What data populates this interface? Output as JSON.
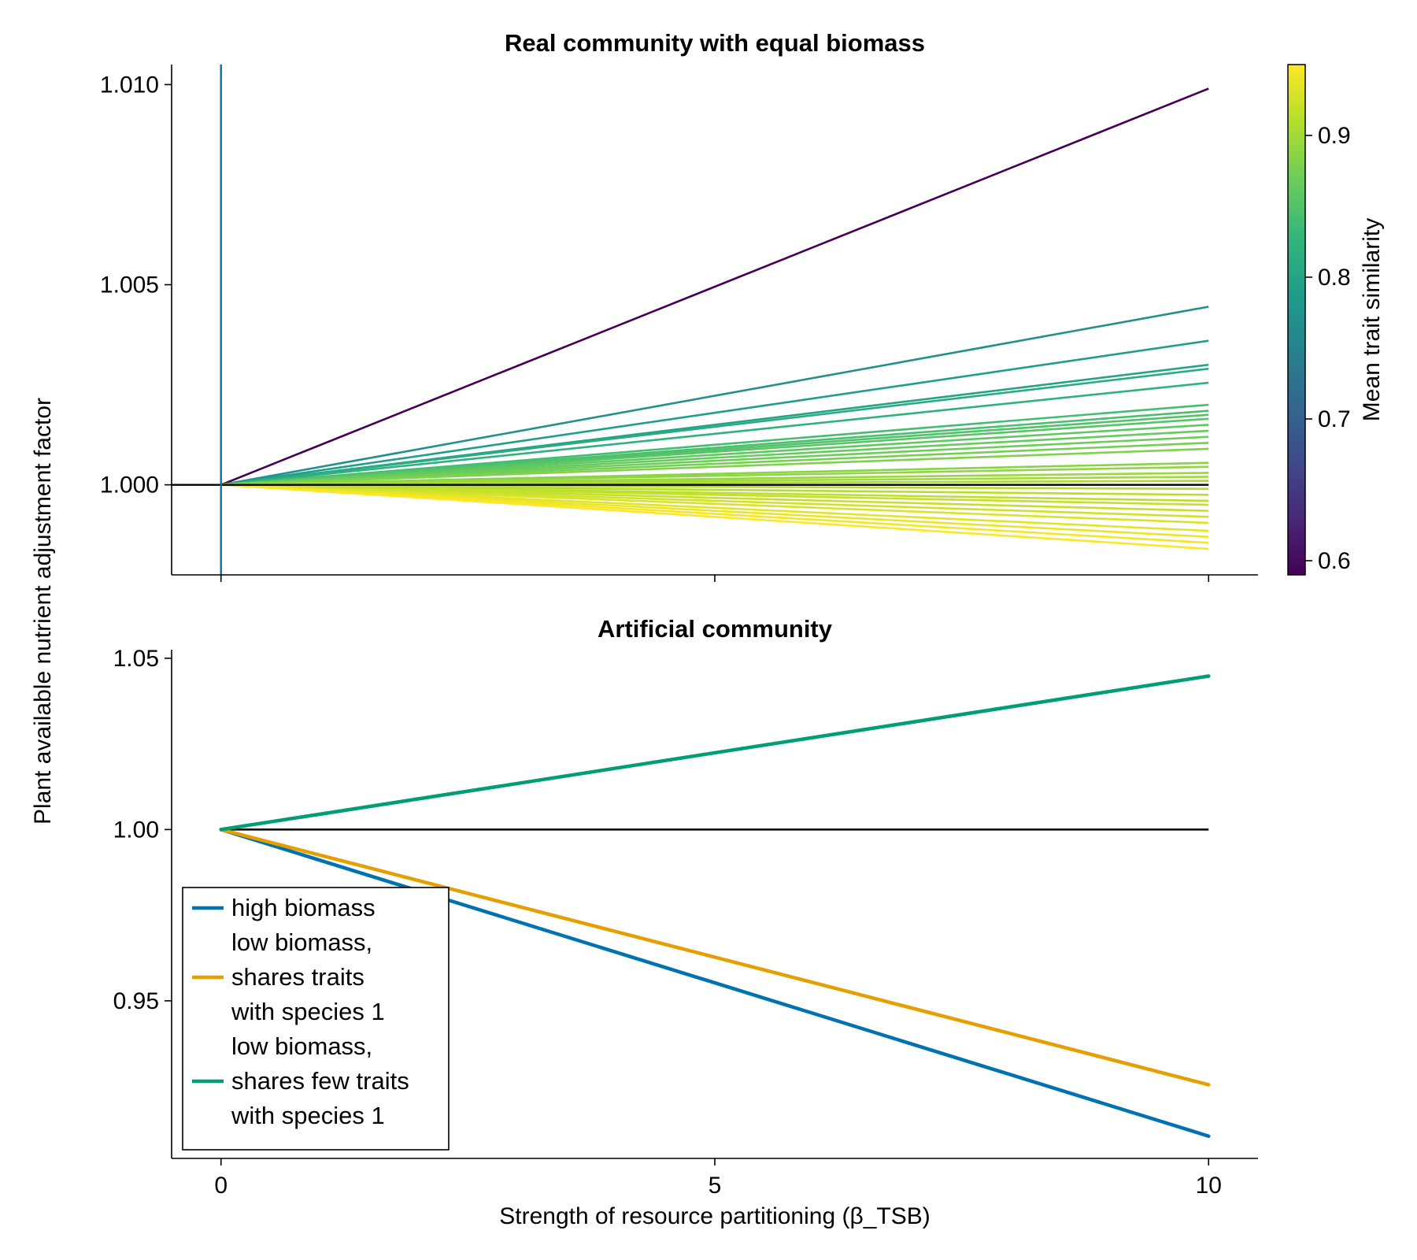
{
  "figure": {
    "ylabel": "Plant available nutrient adjustment factor",
    "xlabel": "Strength of resource partitioning (β_TSB)"
  },
  "chart_data": [
    {
      "panel": "top",
      "type": "line",
      "title": "Real community with equal biomass",
      "xlim": [
        -0.5,
        10.5
      ],
      "ylim": [
        0.99775,
        1.0105
      ],
      "x_ticks": [
        0,
        5,
        10
      ],
      "x_tick_labels_shown": false,
      "y_ticks": [
        1.0,
        1.005,
        1.01
      ],
      "y_tick_labels": [
        "1.000",
        "1.005",
        "1.010"
      ],
      "vertical_line": {
        "x": 0,
        "color": "#0072B2"
      },
      "reference_line": {
        "y": 1.0,
        "color": "#000000"
      },
      "colorbar": {
        "label": "Mean trait similarity",
        "range": [
          0.59,
          0.95
        ],
        "ticks": [
          0.6,
          0.7,
          0.8,
          0.9
        ],
        "tick_labels": [
          "0.6",
          "0.7",
          "0.8",
          "0.9"
        ],
        "colormap": "viridis"
      },
      "series": [
        {
          "x": [
            0,
            10
          ],
          "y": [
            1.0,
            1.0099
          ],
          "similarity": 0.59
        },
        {
          "x": [
            0,
            10
          ],
          "y": [
            1.0,
            1.00445
          ],
          "similarity": 0.77
        },
        {
          "x": [
            0,
            10
          ],
          "y": [
            1.0,
            1.0036
          ],
          "similarity": 0.79
        },
        {
          "x": [
            0,
            10
          ],
          "y": [
            1.0,
            1.003
          ],
          "similarity": 0.8
        },
        {
          "x": [
            0,
            10
          ],
          "y": [
            1.0,
            1.0029
          ],
          "similarity": 0.81
        },
        {
          "x": [
            0,
            10
          ],
          "y": [
            1.0,
            1.00255
          ],
          "similarity": 0.82
        },
        {
          "x": [
            0,
            10
          ],
          "y": [
            1.0,
            1.002
          ],
          "similarity": 0.84
        },
        {
          "x": [
            0,
            10
          ],
          "y": [
            1.0,
            1.00185
          ],
          "similarity": 0.845
        },
        {
          "x": [
            0,
            10
          ],
          "y": [
            1.0,
            1.00175
          ],
          "similarity": 0.85
        },
        {
          "x": [
            0,
            10
          ],
          "y": [
            1.0,
            1.00165
          ],
          "similarity": 0.855
        },
        {
          "x": [
            0,
            10
          ],
          "y": [
            1.0,
            1.0015
          ],
          "similarity": 0.86
        },
        {
          "x": [
            0,
            10
          ],
          "y": [
            1.0,
            1.00135
          ],
          "similarity": 0.865
        },
        {
          "x": [
            0,
            10
          ],
          "y": [
            1.0,
            1.0012
          ],
          "similarity": 0.87
        },
        {
          "x": [
            0,
            10
          ],
          "y": [
            1.0,
            1.00105
          ],
          "similarity": 0.875
        },
        {
          "x": [
            0,
            10
          ],
          "y": [
            1.0,
            1.0009
          ],
          "similarity": 0.88
        },
        {
          "x": [
            0,
            10
          ],
          "y": [
            1.0,
            1.00055
          ],
          "similarity": 0.885
        },
        {
          "x": [
            0,
            10
          ],
          "y": [
            1.0,
            1.00045
          ],
          "similarity": 0.89
        },
        {
          "x": [
            0,
            10
          ],
          "y": [
            1.0,
            1.0003
          ],
          "similarity": 0.895
        },
        {
          "x": [
            0,
            10
          ],
          "y": [
            1.0,
            1.0002
          ],
          "similarity": 0.9
        },
        {
          "x": [
            0,
            10
          ],
          "y": [
            1.0,
            1.0001
          ],
          "similarity": 0.905
        },
        {
          "x": [
            0,
            10
          ],
          "y": [
            1.0,
            0.9999
          ],
          "similarity": 0.91
        },
        {
          "x": [
            0,
            10
          ],
          "y": [
            1.0,
            0.99975
          ],
          "similarity": 0.912
        },
        {
          "x": [
            0,
            10
          ],
          "y": [
            1.0,
            0.9996
          ],
          "similarity": 0.915
        },
        {
          "x": [
            0,
            10
          ],
          "y": [
            1.0,
            0.9995
          ],
          "similarity": 0.918
        },
        {
          "x": [
            0,
            10
          ],
          "y": [
            1.0,
            0.99935
          ],
          "similarity": 0.92
        },
        {
          "x": [
            0,
            10
          ],
          "y": [
            1.0,
            0.9992
          ],
          "similarity": 0.925
        },
        {
          "x": [
            0,
            10
          ],
          "y": [
            1.0,
            0.99905
          ],
          "similarity": 0.93
        },
        {
          "x": [
            0,
            10
          ],
          "y": [
            1.0,
            0.99885
          ],
          "similarity": 0.935
        },
        {
          "x": [
            0,
            10
          ],
          "y": [
            1.0,
            0.9987
          ],
          "similarity": 0.94
        },
        {
          "x": [
            0,
            10
          ],
          "y": [
            1.0,
            0.99855
          ],
          "similarity": 0.945
        },
        {
          "x": [
            0,
            10
          ],
          "y": [
            1.0,
            0.9984
          ],
          "similarity": 0.95
        }
      ]
    },
    {
      "panel": "bottom",
      "type": "line",
      "title": "Artificial community",
      "xlim": [
        -0.5,
        10.5
      ],
      "ylim": [
        0.904,
        1.0525
      ],
      "x_ticks": [
        0,
        5,
        10
      ],
      "x_tick_labels": [
        "0",
        "5",
        "10"
      ],
      "y_ticks": [
        0.95,
        1.0,
        1.05
      ],
      "y_tick_labels": [
        "0.95",
        "1.00",
        "1.05"
      ],
      "reference_line": {
        "y": 1.0,
        "color": "#000000"
      },
      "series": [
        {
          "name": "high biomass",
          "x": [
            0,
            10
          ],
          "y": [
            1.0,
            0.9105
          ],
          "color": "#0072B2"
        },
        {
          "name": "low biomass, shares traits with species 1",
          "x": [
            0,
            10
          ],
          "y": [
            1.0,
            0.9255
          ],
          "color": "#E69F00"
        },
        {
          "name": "low biomass, shares few traits with species 1",
          "x": [
            0,
            10
          ],
          "y": [
            1.0,
            1.0448
          ],
          "color": "#009E73"
        }
      ],
      "legend": {
        "placement": "bottom-left",
        "entries": [
          {
            "lines": [
              "high biomass"
            ],
            "color": "#0072B2"
          },
          {
            "lines": [
              "low biomass,",
              "shares traits",
              "with species 1"
            ],
            "color": "#E69F00"
          },
          {
            "lines": [
              "low biomass,",
              "shares few traits",
              "with species 1"
            ],
            "color": "#009E73"
          }
        ]
      }
    }
  ]
}
